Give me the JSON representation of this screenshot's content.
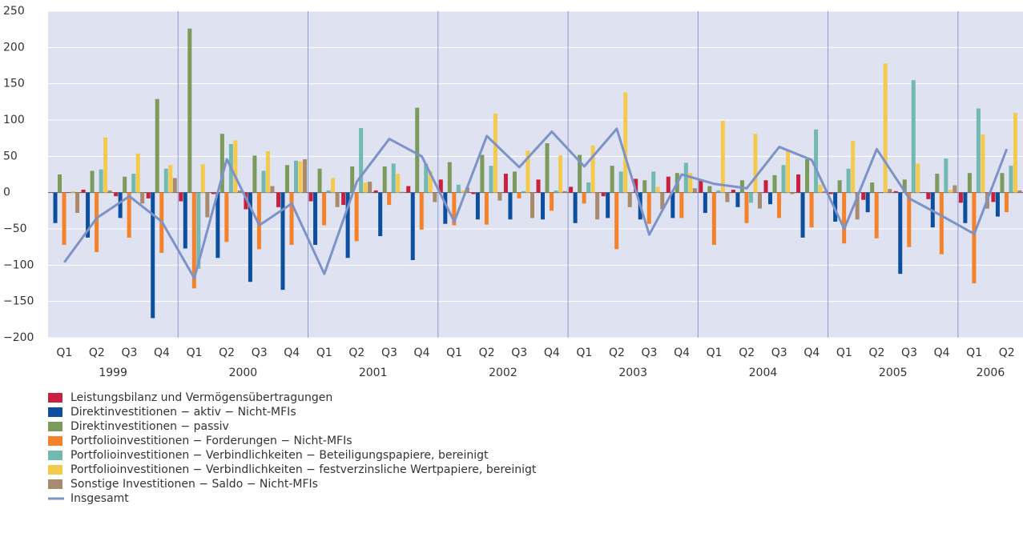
{
  "chart_data": {
    "type": "bar",
    "categories": [
      "Q1",
      "Q2",
      "Q3",
      "Q4",
      "Q1",
      "Q2",
      "Q3",
      "Q4",
      "Q1",
      "Q2",
      "Q3",
      "Q4",
      "Q1",
      "Q2",
      "Q3",
      "Q4",
      "Q1",
      "Q2",
      "Q3",
      "Q4",
      "Q1",
      "Q2",
      "Q3",
      "Q4",
      "Q1",
      "Q2",
      "Q3",
      "Q4",
      "Q1",
      "Q2"
    ],
    "years": [
      "1999",
      "2000",
      "2001",
      "2002",
      "2003",
      "2004",
      "2005",
      "2006"
    ],
    "ylim": [
      -200,
      250
    ],
    "yticks": [
      {
        "value": -200,
        "label": "−200"
      },
      {
        "value": -150,
        "label": "−150"
      },
      {
        "value": -100,
        "label": "−100"
      },
      {
        "value": -50,
        "label": "−50"
      },
      0,
      50,
      100,
      150,
      200,
      250
    ],
    "grid": true,
    "series": [
      {
        "name": "Leistungsbilanz und Vermögensübertragungen",
        "color": "#c8203f",
        "values": [
          0,
          4,
          -5,
          -8,
          -12,
          -2,
          -23,
          -20,
          -12,
          -17,
          3,
          9,
          18,
          -2,
          26,
          18,
          8,
          -5,
          19,
          22,
          17,
          4,
          17,
          25,
          -2,
          -10,
          2,
          -9,
          -14,
          -13
        ]
      },
      {
        "name": "Direktinvestitionen − aktiv − Nicht-MFIs",
        "color": "#0b4f9e",
        "values": [
          -42,
          -62,
          -35,
          -173,
          -77,
          -90,
          -123,
          -134,
          -72,
          -90,
          -60,
          -93,
          -43,
          -37,
          -37,
          -37,
          -42,
          -35,
          -37,
          -35,
          -28,
          -20,
          -16,
          -62,
          -40,
          -27,
          -112,
          -48,
          -42,
          -33
        ]
      },
      {
        "name": "Direktinvestitionen − passiv",
        "color": "#7b9a5c",
        "values": [
          25,
          30,
          22,
          129,
          226,
          81,
          51,
          38,
          33,
          36,
          36,
          117,
          42,
          52,
          29,
          68,
          52,
          37,
          17,
          27,
          9,
          17,
          24,
          46,
          17,
          14,
          18,
          26,
          27,
          27
        ]
      },
      {
        "name": "Portfolioinvestitionen − Forderungen − Nicht-MFIs",
        "color": "#f5822a",
        "values": [
          -72,
          -82,
          -62,
          -83,
          -132,
          -68,
          -78,
          -72,
          -45,
          -67,
          -17,
          -51,
          -45,
          -44,
          -8,
          -25,
          -15,
          -78,
          -43,
          -35,
          -72,
          -42,
          -35,
          -48,
          -70,
          -63,
          -75,
          -85,
          -125,
          -27
        ]
      },
      {
        "name": "Portfolioinvestitionen − Verbindlichkeiten − Beteiligungspapiere, bereinigt",
        "color": "#72b9b2",
        "values": [
          0,
          32,
          26,
          33,
          -105,
          67,
          30,
          44,
          3,
          89,
          40,
          40,
          11,
          37,
          2,
          3,
          14,
          29,
          29,
          41,
          3,
          -14,
          38,
          87,
          33,
          0,
          155,
          47,
          116,
          37
        ]
      },
      {
        "name": "Portfolioinvestitionen − Verbindlichkeiten − festverzinsliche Wertpapiere, bereinigt",
        "color": "#f3c94e",
        "values": [
          2,
          76,
          54,
          38,
          39,
          72,
          57,
          43,
          20,
          14,
          26,
          30,
          3,
          109,
          58,
          51,
          65,
          138,
          8,
          27,
          99,
          81,
          57,
          11,
          71,
          178,
          40,
          4,
          80,
          110
        ]
      },
      {
        "name": "Sonstige Investitionen − Saldo − Nicht-MFIs",
        "color": "#a98a6c",
        "values": [
          -28,
          3,
          -15,
          20,
          -34,
          3,
          9,
          46,
          -20,
          15,
          1,
          -13,
          7,
          -11,
          -35,
          2,
          -37,
          -20,
          -23,
          6,
          -13,
          -22,
          -2,
          2,
          -37,
          5,
          0,
          10,
          -22,
          3
        ]
      }
    ],
    "line": {
      "name": "Insgesamt",
      "color": "#7d92c9",
      "values": [
        -96,
        -35,
        -5,
        -40,
        -118,
        46,
        -45,
        -15,
        -112,
        15,
        74,
        50,
        -40,
        78,
        35,
        84,
        36,
        88,
        -58,
        25,
        12,
        6,
        63,
        45,
        -50,
        60,
        -8,
        -32,
        -57,
        60
      ]
    }
  }
}
